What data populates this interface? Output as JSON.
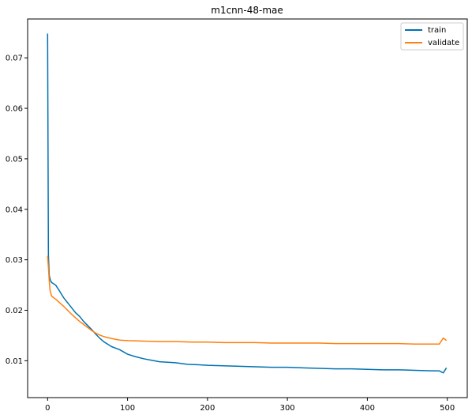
{
  "chart_data": {
    "type": "line",
    "title": "m1cnn-48-mae",
    "xlabel": "",
    "ylabel": "",
    "xlim": [
      -25,
      525
    ],
    "ylim": [
      0.0027,
      0.0777
    ],
    "xticks": [
      0,
      100,
      200,
      300,
      400,
      500
    ],
    "yticks": [
      0.01,
      0.02,
      0.03,
      0.04,
      0.05,
      0.06,
      0.07
    ],
    "ytick_labels": [
      "0.01",
      "0.02",
      "0.03",
      "0.04",
      "0.05",
      "0.06",
      "0.07"
    ],
    "grid": false,
    "legend_position": "top-right",
    "series": [
      {
        "name": "train",
        "color": "#0072b2",
        "x": [
          0,
          1,
          2,
          3,
          4,
          5,
          10,
          15,
          20,
          25,
          30,
          35,
          40,
          45,
          50,
          55,
          60,
          65,
          70,
          80,
          90,
          100,
          110,
          120,
          130,
          140,
          150,
          160,
          175,
          190,
          200,
          220,
          240,
          260,
          280,
          300,
          320,
          340,
          360,
          380,
          400,
          420,
          440,
          460,
          480,
          490,
          495,
          499
        ],
        "y": [
          0.0748,
          0.031,
          0.027,
          0.0262,
          0.0258,
          0.0255,
          0.025,
          0.0238,
          0.0225,
          0.0215,
          0.0205,
          0.0195,
          0.0188,
          0.0178,
          0.017,
          0.0162,
          0.0153,
          0.0145,
          0.0138,
          0.0128,
          0.0122,
          0.0113,
          0.0108,
          0.0104,
          0.0101,
          0.0098,
          0.0097,
          0.0096,
          0.0093,
          0.0092,
          0.0091,
          0.009,
          0.0089,
          0.0088,
          0.0087,
          0.0087,
          0.0086,
          0.0085,
          0.0084,
          0.0084,
          0.0083,
          0.0082,
          0.0082,
          0.0081,
          0.008,
          0.008,
          0.0076,
          0.0086
        ]
      },
      {
        "name": "validate",
        "color": "#ff7f0e",
        "x": [
          0,
          1,
          2,
          3,
          5,
          10,
          15,
          20,
          25,
          30,
          35,
          40,
          45,
          50,
          55,
          60,
          65,
          70,
          80,
          90,
          100,
          120,
          140,
          160,
          180,
          200,
          220,
          240,
          260,
          280,
          300,
          320,
          340,
          360,
          380,
          400,
          420,
          440,
          460,
          480,
          490,
          495,
          499
        ],
        "y": [
          0.0308,
          0.0285,
          0.026,
          0.024,
          0.0228,
          0.0222,
          0.0215,
          0.0208,
          0.02,
          0.0192,
          0.0185,
          0.0178,
          0.0172,
          0.0166,
          0.016,
          0.0155,
          0.0151,
          0.0148,
          0.0144,
          0.0141,
          0.014,
          0.0139,
          0.0138,
          0.0138,
          0.0137,
          0.0137,
          0.0136,
          0.0136,
          0.0136,
          0.0135,
          0.0135,
          0.0135,
          0.0135,
          0.0134,
          0.0134,
          0.0134,
          0.0134,
          0.0134,
          0.0133,
          0.0133,
          0.0133,
          0.0145,
          0.014
        ]
      }
    ]
  }
}
